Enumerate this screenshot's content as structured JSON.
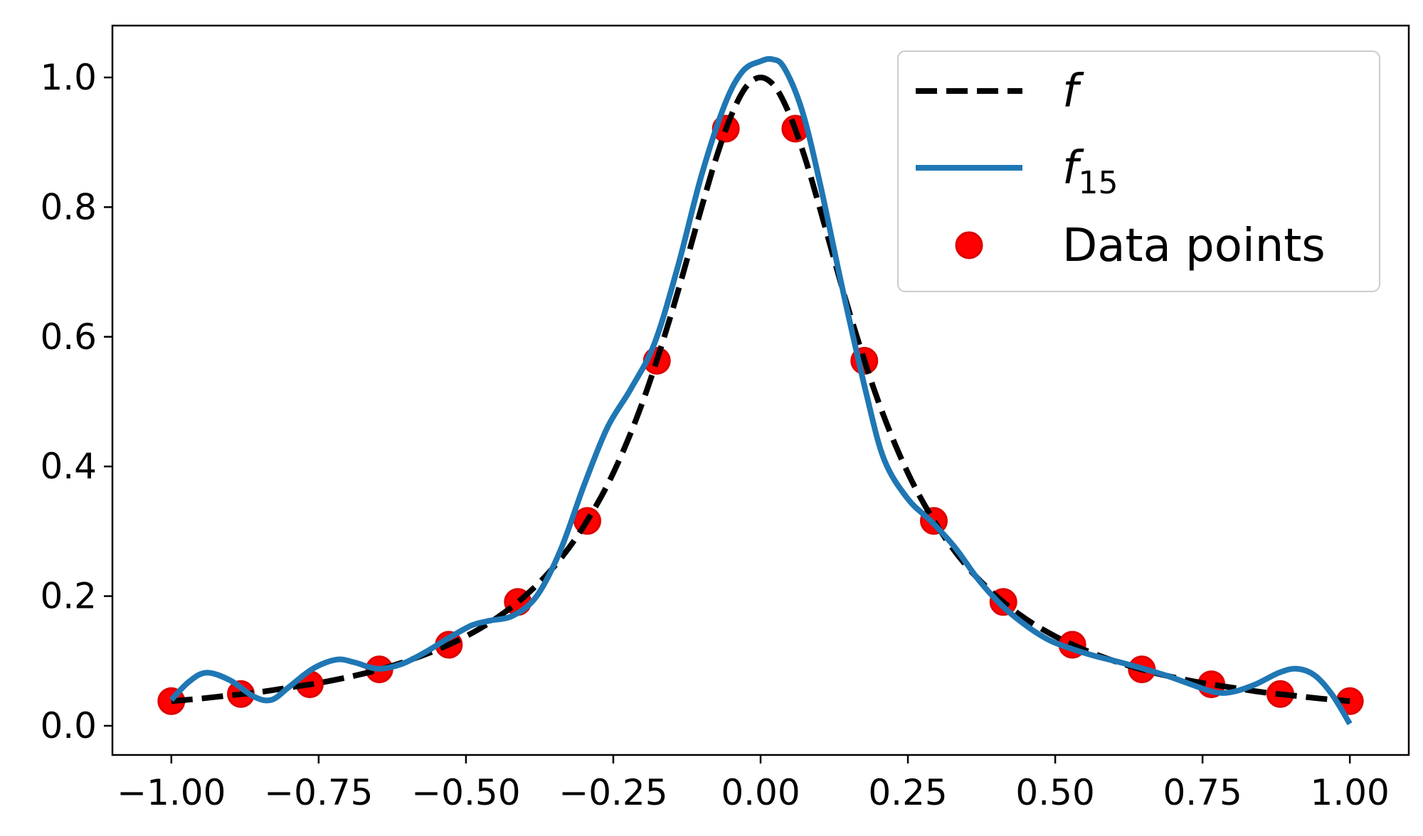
{
  "chart_data": {
    "type": "line",
    "title": "",
    "xlabel": "",
    "ylabel": "",
    "xlim": [
      -1.1,
      1.1
    ],
    "ylim": [
      -0.045,
      1.08
    ],
    "xticks": [
      -1.0,
      -0.75,
      -0.5,
      -0.25,
      0.0,
      0.25,
      0.5,
      0.75,
      1.0
    ],
    "xtick_labels": [
      "−1.00",
      "−0.75",
      "−0.50",
      "−0.25",
      "0.00",
      "0.25",
      "0.50",
      "0.75",
      "1.00"
    ],
    "yticks": [
      0.0,
      0.2,
      0.4,
      0.6,
      0.8,
      1.0
    ],
    "ytick_labels": [
      "0.0",
      "0.2",
      "0.4",
      "0.6",
      "0.8",
      "1.0"
    ],
    "grid": false,
    "legend_position": "top-right",
    "series": [
      {
        "name": "f",
        "kind": "line",
        "style": "dashed",
        "color": "#000000",
        "x": [
          -1.0,
          -0.95,
          -0.9,
          -0.85,
          -0.8,
          -0.75,
          -0.7,
          -0.65,
          -0.6,
          -0.55,
          -0.5,
          -0.45,
          -0.4,
          -0.35,
          -0.3,
          -0.25,
          -0.2,
          -0.15,
          -0.1,
          -0.075,
          -0.05,
          -0.025,
          0.0,
          0.025,
          0.05,
          0.075,
          0.1,
          0.15,
          0.2,
          0.25,
          0.3,
          0.35,
          0.4,
          0.45,
          0.5,
          0.55,
          0.6,
          0.65,
          0.7,
          0.75,
          0.8,
          0.85,
          0.9,
          0.95,
          1.0
        ],
        "y": [
          0.038,
          0.042,
          0.047,
          0.052,
          0.059,
          0.066,
          0.075,
          0.086,
          0.1,
          0.117,
          0.138,
          0.165,
          0.2,
          0.246,
          0.308,
          0.39,
          0.5,
          0.64,
          0.8,
          0.877,
          0.941,
          0.985,
          1.0,
          0.985,
          0.941,
          0.877,
          0.8,
          0.64,
          0.5,
          0.39,
          0.308,
          0.246,
          0.2,
          0.165,
          0.138,
          0.117,
          0.1,
          0.086,
          0.075,
          0.066,
          0.059,
          0.052,
          0.047,
          0.042,
          0.038
        ]
      },
      {
        "name": "f_15",
        "label_base": "f",
        "label_sub": "15",
        "kind": "line",
        "style": "solid",
        "color": "#1f77b4",
        "x": [
          -1.0,
          -0.97,
          -0.94,
          -0.9,
          -0.86,
          -0.83,
          -0.8,
          -0.76,
          -0.72,
          -0.69,
          -0.65,
          -0.61,
          -0.57,
          -0.53,
          -0.49,
          -0.46,
          -0.42,
          -0.38,
          -0.34,
          -0.3,
          -0.26,
          -0.22,
          -0.18,
          -0.14,
          -0.1,
          -0.06,
          -0.03,
          0.0,
          0.02,
          0.04,
          0.07,
          0.1,
          0.14,
          0.18,
          0.21,
          0.25,
          0.29,
          0.33,
          0.37,
          0.41,
          0.45,
          0.49,
          0.53,
          0.57,
          0.61,
          0.65,
          0.69,
          0.73,
          0.77,
          0.8,
          0.84,
          0.88,
          0.91,
          0.94,
          0.97,
          1.0
        ],
        "y": [
          0.04,
          0.068,
          0.082,
          0.07,
          0.045,
          0.04,
          0.06,
          0.088,
          0.102,
          0.098,
          0.088,
          0.095,
          0.113,
          0.135,
          0.155,
          0.162,
          0.17,
          0.2,
          0.27,
          0.37,
          0.46,
          0.52,
          0.59,
          0.71,
          0.85,
          0.96,
          1.01,
          1.025,
          1.028,
          1.015,
          0.95,
          0.84,
          0.67,
          0.51,
          0.41,
          0.35,
          0.315,
          0.275,
          0.225,
          0.185,
          0.155,
          0.132,
          0.118,
          0.107,
          0.098,
          0.088,
          0.077,
          0.064,
          0.052,
          0.052,
          0.064,
          0.082,
          0.088,
          0.078,
          0.048,
          0.003
        ]
      },
      {
        "name": "Data points",
        "kind": "scatter",
        "color": "#ff0000",
        "x": [
          -1.0,
          -0.882,
          -0.765,
          -0.647,
          -0.529,
          -0.412,
          -0.294,
          -0.176,
          -0.059,
          0.059,
          0.176,
          0.294,
          0.412,
          0.529,
          0.647,
          0.765,
          0.882,
          1.0
        ],
        "y": [
          0.038,
          0.049,
          0.064,
          0.087,
          0.125,
          0.191,
          0.316,
          0.563,
          0.921,
          0.921,
          0.563,
          0.316,
          0.191,
          0.125,
          0.087,
          0.064,
          0.049,
          0.038
        ]
      }
    ]
  }
}
